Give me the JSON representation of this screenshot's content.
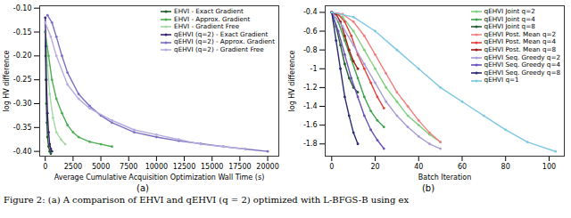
{
  "caption": "Figure 2: (a) A comparison of EHVI and qEHVI (q = 2) optimized with L-BFGS-B using ex",
  "chart_data": [
    {
      "type": "line",
      "title": "(a)",
      "marker": "o",
      "grid": false,
      "legend": "top-right",
      "x_label": "Average Cumulative Acquisition Optimization Wall Time (s)",
      "y_label": "log HV difference",
      "xlim": [
        -500,
        21000
      ],
      "xticks": [
        0,
        2500,
        5000,
        7500,
        10000,
        12500,
        15000,
        17500,
        20000
      ],
      "ylim": [
        -0.41,
        -0.095
      ],
      "yticks": [
        {
          "value": -0.4,
          "label": "-0.40"
        },
        {
          "value": -0.35,
          "label": "-0.35"
        },
        {
          "value": -0.3,
          "label": "-0.30"
        },
        {
          "value": -0.25,
          "label": "-0.25"
        },
        {
          "value": -0.2,
          "label": "-0.20"
        },
        {
          "value": -0.15,
          "label": "-0.15"
        },
        {
          "value": -0.1,
          "label": "-0.10"
        }
      ],
      "series": [
        {
          "name": "EHVI - Exact Gradient",
          "color": "#1f5a2a",
          "x": [
            0,
            30,
            60,
            100,
            150,
            200,
            300,
            400,
            500
          ],
          "values": [
            -0.15,
            -0.2,
            -0.25,
            -0.3,
            -0.34,
            -0.37,
            -0.39,
            -0.4,
            -0.405
          ]
        },
        {
          "name": "EHVI - Approx. Gradient",
          "color": "#4caf50",
          "x": [
            0,
            300,
            600,
            1000,
            1500,
            2000,
            2500,
            3000,
            4000,
            5000,
            6000
          ],
          "values": [
            -0.15,
            -0.2,
            -0.25,
            -0.29,
            -0.32,
            -0.345,
            -0.36,
            -0.37,
            -0.38,
            -0.385,
            -0.39
          ]
        },
        {
          "name": "EHVI - Gradient Free",
          "color": "#a3d9a5",
          "x": [
            0,
            200,
            400,
            700,
            1000,
            1400,
            1800
          ],
          "values": [
            -0.15,
            -0.22,
            -0.28,
            -0.33,
            -0.36,
            -0.375,
            -0.385
          ]
        },
        {
          "name": "qEHVI (q=2) - Exact Gradient",
          "color": "#3b2370",
          "x": [
            0,
            50,
            100,
            200,
            300,
            400,
            500,
            600
          ],
          "values": [
            -0.12,
            -0.18,
            -0.25,
            -0.32,
            -0.36,
            -0.385,
            -0.395,
            -0.4
          ]
        },
        {
          "name": "qEHVI (q=2) - Approx. Gradient",
          "color": "#7a6fc2",
          "x": [
            200,
            600,
            1000,
            1500,
            2000,
            3000,
            4000,
            5000,
            6000,
            8000,
            10000,
            12000,
            14000,
            16000,
            18000,
            20000
          ],
          "values": [
            -0.115,
            -0.13,
            -0.16,
            -0.2,
            -0.235,
            -0.28,
            -0.305,
            -0.325,
            -0.34,
            -0.36,
            -0.37,
            -0.378,
            -0.384,
            -0.39,
            -0.395,
            -0.4
          ]
        },
        {
          "name": "qEHVI (q=2) - Gradient Free",
          "color": "#b8acdf",
          "x": [
            0,
            500,
            1000,
            2000,
            3000,
            4000,
            6000,
            8000,
            10000,
            12000,
            14000,
            16000,
            18000
          ],
          "values": [
            -0.13,
            -0.16,
            -0.2,
            -0.26,
            -0.29,
            -0.31,
            -0.335,
            -0.355,
            -0.365,
            -0.375,
            -0.385,
            -0.39,
            -0.395
          ]
        }
      ]
    },
    {
      "type": "line",
      "title": "(b)",
      "marker": "o",
      "grid": false,
      "legend": "top-right",
      "x_label": "Batch Iteration",
      "y_label": "log HV difference",
      "xlim": [
        -3,
        107
      ],
      "xticks": [
        0,
        20,
        40,
        60,
        80,
        100
      ],
      "ylim": [
        -1.93,
        -0.33
      ],
      "yticks": [
        -1.8,
        -1.6,
        -1.4,
        -1.2,
        -1.0,
        -0.8,
        -0.6,
        -0.4
      ],
      "series": [
        {
          "name": "qEHVI Joint q=2",
          "color": "#7fcf7f",
          "x": [
            0,
            5,
            10,
            15,
            20,
            25,
            30,
            35,
            40,
            45,
            50
          ],
          "values": [
            -0.4,
            -0.45,
            -0.6,
            -0.8,
            -1.0,
            -1.2,
            -1.35,
            -1.5,
            -1.6,
            -1.7,
            -1.78
          ]
        },
        {
          "name": "qEHVI Joint q=4",
          "color": "#3fa34d",
          "x": [
            0,
            3,
            6,
            9,
            12,
            15,
            18,
            21,
            24
          ],
          "values": [
            -0.4,
            -0.5,
            -0.7,
            -0.9,
            -1.1,
            -1.3,
            -1.45,
            -1.55,
            -1.62
          ]
        },
        {
          "name": "qEHVI Joint q=8",
          "color": "#1f5f2f",
          "x": [
            0,
            2,
            4,
            6,
            8,
            10,
            12
          ],
          "values": [
            -0.4,
            -0.55,
            -0.75,
            -0.95,
            -1.1,
            -1.2,
            -1.25
          ]
        },
        {
          "name": "qEHVI Post. Mean q=2",
          "color": "#f08080",
          "x": [
            0,
            5,
            10,
            15,
            20,
            25,
            30,
            35,
            40,
            45,
            50
          ],
          "values": [
            -0.4,
            -0.42,
            -0.5,
            -0.65,
            -0.85,
            -1.05,
            -1.25,
            -1.4,
            -1.55,
            -1.68,
            -1.78
          ]
        },
        {
          "name": "qEHVI Post. Mean q=4",
          "color": "#e0443a",
          "x": [
            0,
            3,
            6,
            9,
            12,
            15,
            18,
            21,
            24
          ],
          "values": [
            -0.4,
            -0.42,
            -0.5,
            -0.65,
            -0.85,
            -1.0,
            -1.15,
            -1.3,
            -1.42
          ]
        },
        {
          "name": "qEHVI Post. Mean q=8",
          "color": "#9e1b1b",
          "x": [
            0,
            2,
            4,
            6,
            8,
            10,
            12
          ],
          "values": [
            -0.4,
            -0.42,
            -0.5,
            -0.65,
            -0.8,
            -0.92,
            -1.0
          ]
        },
        {
          "name": "qEHVI Seq. Greedy q=2",
          "color": "#a99ad8",
          "x": [
            0,
            5,
            10,
            15,
            20,
            25,
            30,
            35,
            40,
            45,
            50
          ],
          "values": [
            -0.4,
            -0.55,
            -0.75,
            -0.95,
            -1.15,
            -1.35,
            -1.5,
            -1.62,
            -1.72,
            -1.8,
            -1.85
          ]
        },
        {
          "name": "qEHVI Seq. Greedy q=4",
          "color": "#6a50b8",
          "x": [
            0,
            3,
            6,
            9,
            12,
            15,
            18,
            21,
            24
          ],
          "values": [
            -0.4,
            -0.6,
            -0.85,
            -1.1,
            -1.3,
            -1.5,
            -1.65,
            -1.76,
            -1.85
          ]
        },
        {
          "name": "qEHVI Seq. Greedy q=8",
          "color": "#2a2a70",
          "x": [
            0,
            2,
            4,
            6,
            8,
            10,
            12
          ],
          "values": [
            -0.4,
            -0.7,
            -1.0,
            -1.3,
            -1.5,
            -1.68,
            -1.8
          ]
        },
        {
          "name": "qEHVI q=1",
          "color": "#7ec8e3",
          "x": [
            0,
            10,
            20,
            30,
            40,
            50,
            60,
            70,
            80,
            90,
            103
          ],
          "values": [
            -0.4,
            -0.45,
            -0.6,
            -0.8,
            -1.0,
            -1.2,
            -1.35,
            -1.5,
            -1.65,
            -1.78,
            -1.88
          ]
        }
      ]
    }
  ]
}
